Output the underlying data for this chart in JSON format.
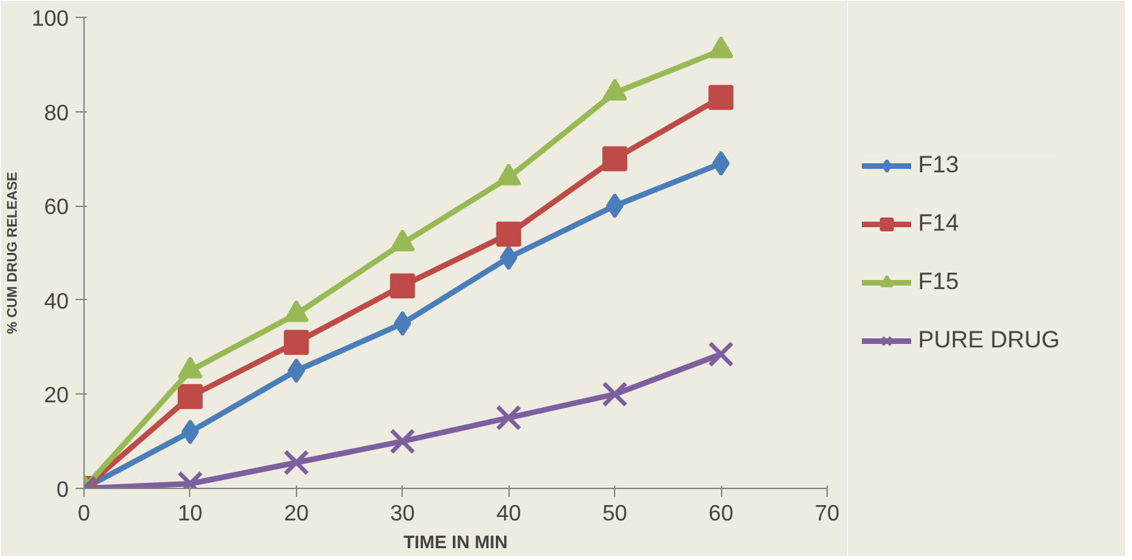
{
  "chart_data": {
    "type": "line",
    "xlabel": "TIME IN MIN",
    "ylabel": "% CUM DRUG RELEASE",
    "x": [
      0,
      10,
      20,
      30,
      40,
      50,
      60
    ],
    "series": [
      {
        "name": "F13",
        "color": "#4a7ebb",
        "marker": "diamond",
        "values": [
          0,
          12,
          25,
          35,
          49,
          60,
          69
        ]
      },
      {
        "name": "F14",
        "color": "#be4b48",
        "marker": "square",
        "values": [
          0,
          19.5,
          31,
          43,
          54,
          70,
          83
        ]
      },
      {
        "name": "F15",
        "color": "#98b954",
        "marker": "triangle",
        "values": [
          0,
          25,
          37,
          52,
          66,
          84,
          93
        ]
      },
      {
        "name": "PURE DRUG",
        "color": "#7d5fa0",
        "marker": "cross",
        "values": [
          0,
          1,
          5.5,
          10,
          15,
          20,
          28.5
        ]
      }
    ],
    "xlim": [
      0,
      70
    ],
    "xticks": [
      0,
      10,
      20,
      30,
      40,
      50,
      60,
      70
    ],
    "ylim": [
      0,
      100
    ],
    "yticks": [
      0,
      20,
      40,
      60,
      80,
      100
    ],
    "grid": false,
    "legend": "right",
    "line_style": "solid"
  }
}
